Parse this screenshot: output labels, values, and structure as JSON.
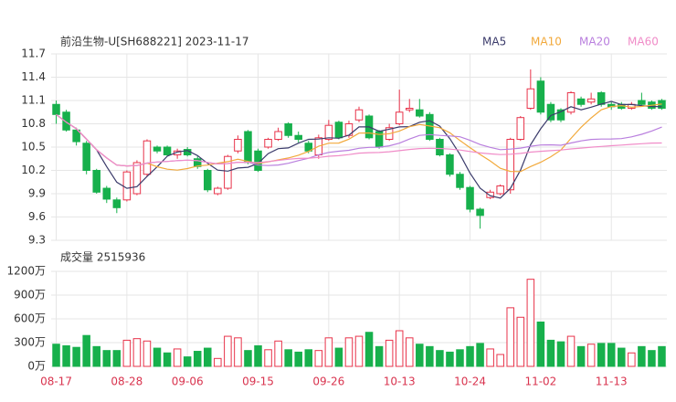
{
  "chart_data": {
    "type": "candlestick",
    "title": "前沿生物-U[SH688221] 2023-11-17",
    "volume_title": "成交量 2515936",
    "categories": [
      "08-17",
      null,
      null,
      null,
      null,
      null,
      null,
      "08-28",
      null,
      null,
      null,
      null,
      null,
      "09-06",
      null,
      null,
      null,
      null,
      null,
      null,
      "09-15",
      null,
      null,
      null,
      null,
      null,
      null,
      "09-26",
      null,
      null,
      null,
      null,
      null,
      null,
      "10-13",
      null,
      null,
      null,
      null,
      null,
      null,
      "10-24",
      null,
      null,
      null,
      null,
      null,
      null,
      "11-02",
      null,
      null,
      null,
      null,
      null,
      null,
      "11-13",
      null,
      null,
      null,
      null,
      null
    ],
    "open": [
      11.05,
      10.95,
      10.72,
      10.55,
      10.2,
      9.97,
      9.82,
      9.82,
      9.9,
      10.15,
      10.5,
      10.5,
      10.4,
      10.47,
      10.35,
      10.2,
      9.9,
      9.97,
      10.45,
      10.7,
      10.45,
      10.5,
      10.6,
      10.8,
      10.65,
      10.55,
      10.4,
      10.6,
      10.82,
      10.65,
      10.85,
      10.9,
      10.7,
      10.6,
      10.8,
      10.98,
      10.98,
      10.92,
      10.6,
      10.4,
      10.15,
      9.98,
      9.7,
      9.85,
      9.9,
      9.95,
      10.6,
      11.0,
      11.35,
      11.05,
      10.98,
      10.95,
      11.12,
      11.08,
      11.2,
      11.05,
      11.05,
      11.0,
      11.1,
      11.08,
      11.1
    ],
    "high": [
      11.1,
      10.98,
      10.75,
      10.58,
      10.22,
      10.0,
      9.85,
      10.2,
      10.33,
      10.6,
      10.52,
      10.52,
      10.48,
      10.5,
      10.38,
      10.22,
      9.99,
      10.4,
      10.65,
      10.72,
      10.48,
      10.62,
      10.75,
      10.82,
      10.7,
      10.58,
      10.66,
      10.85,
      10.84,
      10.84,
      11.02,
      10.92,
      10.72,
      10.8,
      11.24,
      11.12,
      11.12,
      10.95,
      10.62,
      10.42,
      10.18,
      10.0,
      9.72,
      9.95,
      10.02,
      10.62,
      10.9,
      11.5,
      11.4,
      11.08,
      11.0,
      11.22,
      11.15,
      11.2,
      11.22,
      11.08,
      11.08,
      11.08,
      11.2,
      11.1,
      11.12
    ],
    "low": [
      10.8,
      10.7,
      10.52,
      10.15,
      9.9,
      9.78,
      9.65,
      9.8,
      9.88,
      10.12,
      10.42,
      10.38,
      10.35,
      10.38,
      10.22,
      9.92,
      9.88,
      9.95,
      10.42,
      10.28,
      10.18,
      10.48,
      10.58,
      10.62,
      10.56,
      10.42,
      10.35,
      10.58,
      10.6,
      10.62,
      10.82,
      10.6,
      10.48,
      10.58,
      10.78,
      10.95,
      10.88,
      10.58,
      10.38,
      10.12,
      9.95,
      9.66,
      9.45,
      9.83,
      9.88,
      9.9,
      10.58,
      10.98,
      10.92,
      10.82,
      10.82,
      10.92,
      11.02,
      11.05,
      11.02,
      10.98,
      10.98,
      10.98,
      11.02,
      10.98,
      10.98
    ],
    "close": [
      10.92,
      10.72,
      10.57,
      10.2,
      9.92,
      9.83,
      9.72,
      10.18,
      10.3,
      10.58,
      10.45,
      10.4,
      10.45,
      10.4,
      10.25,
      9.95,
      9.97,
      10.38,
      10.6,
      10.3,
      10.2,
      10.6,
      10.7,
      10.65,
      10.6,
      10.45,
      10.62,
      10.78,
      10.62,
      10.8,
      10.98,
      10.62,
      10.5,
      10.75,
      10.95,
      11.0,
      10.9,
      10.6,
      10.4,
      10.15,
      9.98,
      9.7,
      9.62,
      9.92,
      10.0,
      10.6,
      10.88,
      11.25,
      10.95,
      10.85,
      10.85,
      11.2,
      11.05,
      11.12,
      11.05,
      11.02,
      11.0,
      11.05,
      11.05,
      11.0,
      11.0
    ],
    "volume": [
      280,
      260,
      240,
      390,
      250,
      200,
      200,
      330,
      350,
      320,
      230,
      170,
      220,
      120,
      190,
      230,
      100,
      380,
      360,
      200,
      260,
      210,
      320,
      210,
      180,
      210,
      200,
      360,
      230,
      360,
      380,
      430,
      250,
      330,
      450,
      360,
      280,
      250,
      200,
      180,
      210,
      250,
      290,
      220,
      150,
      740,
      620,
      1100,
      560,
      330,
      310,
      380,
      250,
      280,
      290,
      290,
      230,
      170,
      250,
      200,
      250
    ],
    "up_color": "#e8334a",
    "down_color": "#17b04c",
    "moving_averages": [
      {
        "name": "MA5",
        "period": 5,
        "color": "#3b3b6b"
      },
      {
        "name": "MA10",
        "period": 10,
        "color": "#f2a93b"
      },
      {
        "name": "MA20",
        "period": 20,
        "color": "#b97fde"
      },
      {
        "name": "MA60",
        "period": 60,
        "color": "#f08cc8"
      }
    ],
    "ylim": [
      9.3,
      11.7
    ],
    "yticks": [
      9.3,
      9.6,
      9.9,
      10.2,
      10.5,
      10.8,
      11.1,
      11.4,
      11.7
    ],
    "volume_ylim": [
      0,
      1200
    ],
    "volume_yticks": [
      {
        "value": 0,
        "label": "0万"
      },
      {
        "value": 300,
        "label": "300万"
      },
      {
        "value": 600,
        "label": "600万"
      },
      {
        "value": 900,
        "label": "900万"
      },
      {
        "value": 1200,
        "label": "1200万"
      }
    ],
    "grid": true
  }
}
